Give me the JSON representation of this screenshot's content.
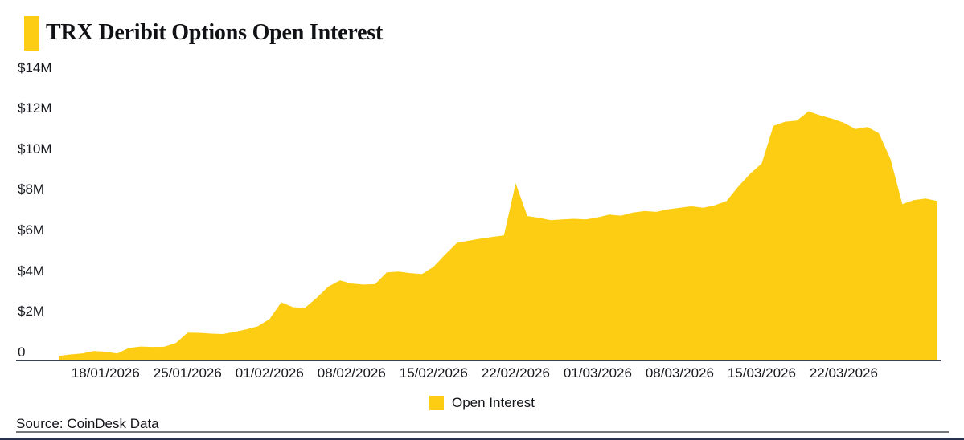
{
  "header": {
    "title": "TRX Deribit Options Open Interest"
  },
  "legend": {
    "label": "Open Interest"
  },
  "footer": {
    "source": "Source: CoinDesk Data"
  },
  "colors": {
    "accent_yellow": "#FCCD12",
    "axis_line": "#3C4450",
    "text": "#16181D",
    "divider_gray": "#75787B",
    "bottom_bar_navy": "#26334A",
    "background": "#FFFFFF"
  },
  "chart_data": {
    "type": "area",
    "title": "TRX Deribit Options Open Interest",
    "unit": "USD, millions",
    "grid": false,
    "legend_position": "bottom-center",
    "ylim": [
      0,
      14
    ],
    "y_tick_labels": [
      "$14M",
      "$12M",
      "$10M",
      "$8M",
      "$6M",
      "$4M",
      "$2M",
      "0"
    ],
    "y_tick_values": [
      14,
      12,
      10,
      8,
      6,
      4,
      2,
      0
    ],
    "x_start_date": "14/01/2026",
    "x_end_date": "30/03/2026",
    "x_frequency": "daily",
    "x_tick_labels": [
      "18/01/2026",
      "25/01/2026",
      "01/02/2026",
      "08/02/2026",
      "15/02/2026",
      "22/02/2026",
      "01/03/2026",
      "08/03/2026",
      "15/03/2026",
      "22/03/2026"
    ],
    "x_tick_day_indices": [
      4,
      11,
      18,
      25,
      32,
      39,
      46,
      53,
      60,
      67
    ],
    "series": [
      {
        "name": "Open Interest",
        "color": "#FCCD12",
        "values_musd": [
          0.18,
          0.25,
          0.3,
          0.42,
          0.38,
          0.3,
          0.56,
          0.63,
          0.61,
          0.62,
          0.8,
          1.3,
          1.29,
          1.25,
          1.23,
          1.33,
          1.45,
          1.6,
          1.95,
          2.75,
          2.52,
          2.48,
          2.95,
          3.5,
          3.8,
          3.65,
          3.6,
          3.62,
          4.18,
          4.22,
          4.15,
          4.1,
          4.45,
          5.05,
          5.6,
          5.7,
          5.8,
          5.88,
          5.95,
          8.45,
          6.88,
          6.8,
          6.68,
          6.72,
          6.75,
          6.72,
          6.82,
          6.95,
          6.9,
          7.05,
          7.12,
          7.08,
          7.2,
          7.28,
          7.35,
          7.28,
          7.4,
          7.6,
          8.3,
          8.9,
          9.4,
          11.2,
          11.4,
          11.45,
          11.9,
          11.7,
          11.55,
          11.35,
          11.05,
          11.15,
          10.85,
          9.6,
          7.45,
          7.65,
          7.72,
          7.6
        ]
      }
    ]
  }
}
